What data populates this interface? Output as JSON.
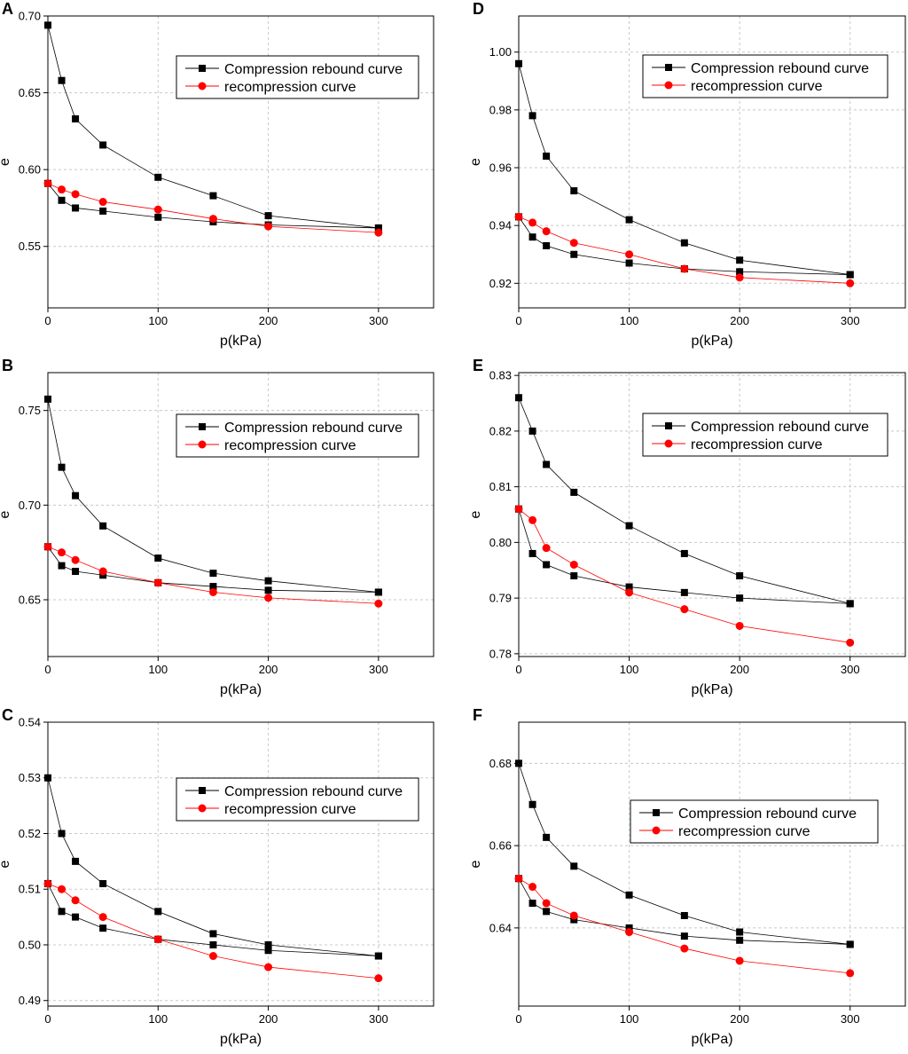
{
  "figure": {
    "legend": {
      "series1": "Compression rebound curve",
      "series2": "recompression curve"
    }
  },
  "chart_data": [
    {
      "panel": "A",
      "type": "line",
      "xlabel": "p(kPa)",
      "ylabel": "e",
      "xlim": [
        0,
        350
      ],
      "ylim": [
        0.51,
        0.7
      ],
      "xticks": [
        0,
        100,
        200,
        300
      ],
      "yticks": [
        0.55,
        0.6,
        0.65,
        0.7
      ],
      "ytick_labels": [
        "0.55",
        "0.60",
        "0.65",
        "0.70"
      ],
      "grid": true,
      "legend_position": "top-right",
      "x": [
        0,
        12.5,
        25,
        50,
        100,
        150,
        200,
        300
      ],
      "series": [
        {
          "name": "Compression rebound curve",
          "color": "#000000",
          "marker": "square",
          "values": [
            0.694,
            0.658,
            0.633,
            0.616,
            0.595,
            0.583,
            0.57,
            0.562
          ],
          "rebound_x": [
            300,
            200,
            150,
            100,
            50,
            25,
            12.5,
            0
          ],
          "rebound_values": [
            0.562,
            0.564,
            0.566,
            0.569,
            0.573,
            0.575,
            0.58,
            0.591
          ]
        },
        {
          "name": "recompression curve",
          "color": "#ff0000",
          "marker": "circle",
          "x": [
            0,
            12.5,
            25,
            50,
            100,
            150,
            200,
            300
          ],
          "values": [
            0.591,
            0.587,
            0.584,
            0.579,
            0.574,
            0.568,
            0.563,
            0.559
          ]
        }
      ]
    },
    {
      "panel": "B",
      "type": "line",
      "xlabel": "p(kPa)",
      "ylabel": "e",
      "xlim": [
        0,
        350
      ],
      "ylim": [
        0.62,
        0.77
      ],
      "xticks": [
        0,
        100,
        200,
        300
      ],
      "yticks": [
        0.65,
        0.7,
        0.75
      ],
      "ytick_labels": [
        "0.65",
        "0.70",
        "0.75"
      ],
      "grid": true,
      "legend_position": "top-right",
      "x": [
        0,
        12.5,
        25,
        50,
        100,
        150,
        200,
        300
      ],
      "series": [
        {
          "name": "Compression rebound curve",
          "color": "#000000",
          "marker": "square",
          "values": [
            0.756,
            0.72,
            0.705,
            0.689,
            0.672,
            0.664,
            0.66,
            0.654
          ],
          "rebound_x": [
            300,
            200,
            150,
            100,
            50,
            25,
            12.5,
            0
          ],
          "rebound_values": [
            0.654,
            0.655,
            0.657,
            0.659,
            0.663,
            0.665,
            0.668,
            0.678
          ]
        },
        {
          "name": "recompression curve",
          "color": "#ff0000",
          "marker": "circle",
          "x": [
            0,
            12.5,
            25,
            50,
            100,
            150,
            200,
            300
          ],
          "values": [
            0.678,
            0.675,
            0.671,
            0.665,
            0.659,
            0.654,
            0.651,
            0.648
          ]
        }
      ]
    },
    {
      "panel": "C",
      "type": "line",
      "xlabel": "p(kPa)",
      "ylabel": "e",
      "xlim": [
        0,
        350
      ],
      "ylim": [
        0.489,
        0.54
      ],
      "xticks": [
        0,
        100,
        200,
        300
      ],
      "yticks": [
        0.49,
        0.5,
        0.51,
        0.52,
        0.53,
        0.54
      ],
      "ytick_labels": [
        "0.49",
        "0.50",
        "0.51",
        "0.52",
        "0.53",
        "0.54"
      ],
      "grid": true,
      "legend_position": "top-right",
      "x": [
        0,
        12.5,
        25,
        50,
        100,
        150,
        200,
        300
      ],
      "series": [
        {
          "name": "Compression rebound curve",
          "color": "#000000",
          "marker": "square",
          "values": [
            0.53,
            0.52,
            0.515,
            0.511,
            0.506,
            0.502,
            0.5,
            0.498
          ],
          "rebound_x": [
            300,
            200,
            150,
            100,
            50,
            25,
            12.5,
            0
          ],
          "rebound_values": [
            0.498,
            0.499,
            0.5,
            0.501,
            0.503,
            0.505,
            0.506,
            0.511
          ]
        },
        {
          "name": "recompression curve",
          "color": "#ff0000",
          "marker": "circle",
          "x": [
            0,
            12.5,
            25,
            50,
            100,
            150,
            200,
            300
          ],
          "values": [
            0.511,
            0.51,
            0.508,
            0.505,
            0.501,
            0.498,
            0.496,
            0.494
          ]
        }
      ]
    },
    {
      "panel": "D",
      "type": "line",
      "xlabel": "p(kPa)",
      "ylabel": "e",
      "xlim": [
        0,
        350
      ],
      "ylim": [
        0.9115,
        1.0125
      ],
      "xticks": [
        0,
        100,
        200,
        300
      ],
      "yticks": [
        0.92,
        0.94,
        0.96,
        0.98,
        1.0
      ],
      "ytick_labels": [
        "0.92",
        "0.94",
        "0.96",
        "0.98",
        "1.00"
      ],
      "grid": true,
      "legend_position": "top-right",
      "x": [
        0,
        12.5,
        25,
        50,
        100,
        150,
        200,
        300
      ],
      "series": [
        {
          "name": "Compression rebound curve",
          "color": "#000000",
          "marker": "square",
          "values": [
            0.996,
            0.978,
            0.964,
            0.952,
            0.942,
            0.934,
            0.928,
            0.923
          ],
          "rebound_x": [
            300,
            200,
            150,
            100,
            50,
            25,
            12.5,
            0
          ],
          "rebound_values": [
            0.923,
            0.924,
            0.925,
            0.927,
            0.93,
            0.933,
            0.936,
            0.943
          ]
        },
        {
          "name": "recompression curve",
          "color": "#ff0000",
          "marker": "circle",
          "x": [
            0,
            12.5,
            25,
            50,
            100,
            150,
            200,
            300
          ],
          "values": [
            0.943,
            0.941,
            0.938,
            0.934,
            0.93,
            0.925,
            0.922,
            0.92
          ]
        }
      ]
    },
    {
      "panel": "E",
      "type": "line",
      "xlabel": "p(kPa)",
      "ylabel": "e",
      "xlim": [
        0,
        350
      ],
      "ylim": [
        0.7795,
        0.8305
      ],
      "xticks": [
        0,
        100,
        200,
        300
      ],
      "yticks": [
        0.78,
        0.79,
        0.8,
        0.81,
        0.82,
        0.83
      ],
      "ytick_labels": [
        "0.78",
        "0.79",
        "0.80",
        "0.81",
        "0.82",
        "0.83"
      ],
      "grid": true,
      "legend_position": "top-right",
      "x": [
        0,
        12.5,
        25,
        50,
        100,
        150,
        200,
        300
      ],
      "series": [
        {
          "name": "Compression rebound curve",
          "color": "#000000",
          "marker": "square",
          "values": [
            0.826,
            0.82,
            0.814,
            0.809,
            0.803,
            0.798,
            0.794,
            0.789
          ],
          "rebound_x": [
            300,
            200,
            150,
            100,
            50,
            25,
            12.5,
            0
          ],
          "rebound_values": [
            0.789,
            0.79,
            0.791,
            0.792,
            0.794,
            0.796,
            0.798,
            0.806
          ]
        },
        {
          "name": "recompression curve",
          "color": "#ff0000",
          "marker": "circle",
          "x": [
            0,
            12.5,
            25,
            50,
            100,
            150,
            200,
            300
          ],
          "values": [
            0.806,
            0.804,
            0.799,
            0.796,
            0.791,
            0.788,
            0.785,
            0.782
          ]
        }
      ]
    },
    {
      "panel": "F",
      "type": "line",
      "xlabel": "p(kPa)",
      "ylabel": "e",
      "xlim": [
        0,
        350
      ],
      "ylim": [
        0.621,
        0.69
      ],
      "xticks": [
        0,
        100,
        200,
        300
      ],
      "yticks": [
        0.64,
        0.66,
        0.68
      ],
      "ytick_labels": [
        "0.64",
        "0.66",
        "0.68"
      ],
      "grid": true,
      "legend_position": "top-right",
      "x": [
        0,
        12.5,
        25,
        50,
        100,
        150,
        200,
        300
      ],
      "series": [
        {
          "name": "Compression rebound curve",
          "color": "#000000",
          "marker": "square",
          "values": [
            0.68,
            0.67,
            0.662,
            0.655,
            0.648,
            0.643,
            0.639,
            0.636
          ],
          "rebound_x": [
            300,
            200,
            150,
            100,
            50,
            25,
            12.5,
            0
          ],
          "rebound_values": [
            0.636,
            0.637,
            0.638,
            0.64,
            0.642,
            0.644,
            0.646,
            0.652
          ]
        },
        {
          "name": "recompression curve",
          "color": "#ff0000",
          "marker": "circle",
          "x": [
            0,
            12.5,
            25,
            50,
            100,
            150,
            200,
            300
          ],
          "values": [
            0.652,
            0.65,
            0.646,
            0.643,
            0.639,
            0.635,
            0.632,
            0.629
          ]
        }
      ]
    }
  ]
}
